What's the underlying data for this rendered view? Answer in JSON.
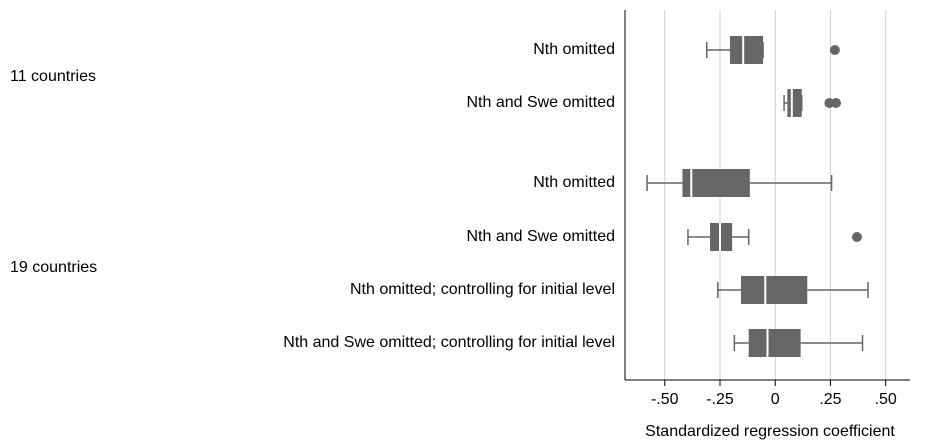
{
  "chart_data": {
    "type": "box",
    "xlabel": "Standardized regression coefficient",
    "xlim": [
      -0.68,
      0.61
    ],
    "xticks": [
      {
        "value": -0.5,
        "label": "-.50"
      },
      {
        "value": -0.25,
        "label": "-.25"
      },
      0,
      {
        "value": 0.25,
        "label": ".25"
      },
      {
        "value": 0.5,
        "label": ".50"
      }
    ],
    "grid": true,
    "color": "#666666",
    "groups": [
      {
        "label": "11 countries",
        "boxes": [
          {
            "label": "Nth omitted",
            "whislo": -0.31,
            "q1": -0.205,
            "med": -0.145,
            "q3": -0.055,
            "whishi": -0.055,
            "outliers": [
              0.27
            ]
          },
          {
            "label": "Nth and Swe omitted",
            "whislo": 0.04,
            "q1": 0.055,
            "med": 0.075,
            "q3": 0.12,
            "whishi": 0.12,
            "outliers": [
              0.245,
              0.275
            ]
          }
        ]
      },
      {
        "label": "19 countries",
        "boxes": [
          {
            "label": "Nth omitted",
            "whislo": -0.58,
            "q1": -0.42,
            "med": -0.38,
            "q3": -0.115,
            "whishi": 0.255,
            "outliers": []
          },
          {
            "label": "Nth and Swe omitted",
            "whislo": -0.395,
            "q1": -0.295,
            "med": -0.25,
            "q3": -0.195,
            "whishi": -0.12,
            "outliers": [
              0.37
            ]
          },
          {
            "label": "Nth omitted; controlling for initial level",
            "whislo": -0.26,
            "q1": -0.155,
            "med": -0.045,
            "q3": 0.145,
            "whishi": 0.42,
            "outliers": []
          },
          {
            "label": "Nth and Swe omitted; controlling for initial level",
            "whislo": -0.185,
            "q1": -0.12,
            "med": -0.035,
            "q3": 0.115,
            "whishi": 0.395,
            "outliers": []
          }
        ]
      }
    ]
  }
}
